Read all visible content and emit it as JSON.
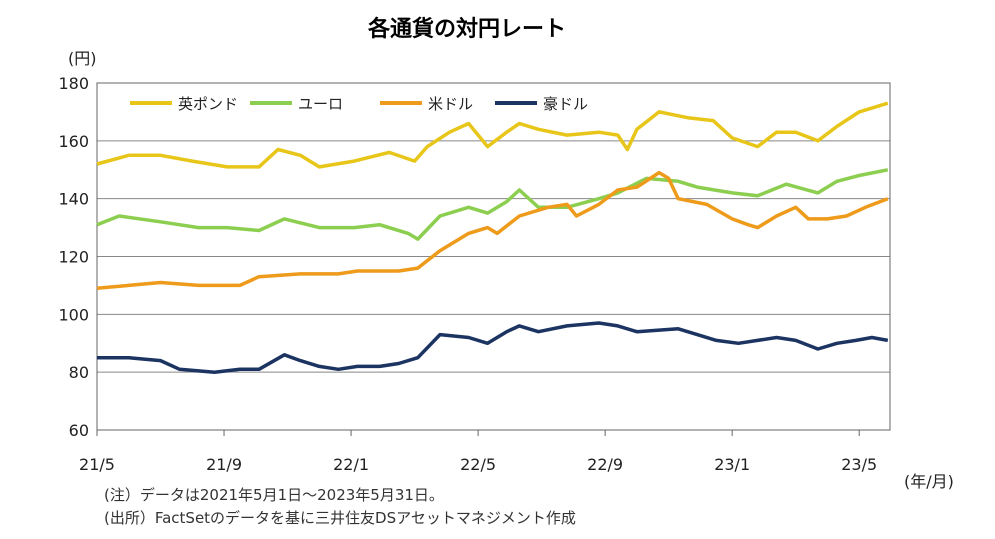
{
  "chart_data": {
    "type": "line",
    "title": "各通貨の対円レート",
    "ylabel": "(円)",
    "xlabel": "(年/月)",
    "ylim": [
      60,
      180
    ],
    "yticks": [
      60,
      80,
      100,
      120,
      140,
      160,
      180
    ],
    "xlim_months_since_2021_05": [
      0,
      24.97
    ],
    "xticks": [
      {
        "label": "21/5",
        "m": 0
      },
      {
        "label": "21/9",
        "m": 4
      },
      {
        "label": "22/1",
        "m": 8
      },
      {
        "label": "22/5",
        "m": 12
      },
      {
        "label": "22/9",
        "m": 16
      },
      {
        "label": "23/1",
        "m": 20
      },
      {
        "label": "23/5",
        "m": 24
      }
    ],
    "grid": true,
    "legend_position": "top-left",
    "series": [
      {
        "name": "英ポンド",
        "color": "#e8c619",
        "points": [
          [
            0,
            152
          ],
          [
            1.0,
            155
          ],
          [
            2.0,
            155
          ],
          [
            3.0,
            153
          ],
          [
            4.1,
            151
          ],
          [
            5.1,
            151
          ],
          [
            5.7,
            157
          ],
          [
            6.4,
            155
          ],
          [
            7.0,
            151
          ],
          [
            8.1,
            153
          ],
          [
            9.2,
            156
          ],
          [
            10.0,
            153
          ],
          [
            10.4,
            158
          ],
          [
            11.1,
            163
          ],
          [
            11.7,
            166
          ],
          [
            12.3,
            158
          ],
          [
            12.9,
            163
          ],
          [
            13.3,
            166
          ],
          [
            13.9,
            164
          ],
          [
            14.8,
            162
          ],
          [
            15.8,
            163
          ],
          [
            16.4,
            162
          ],
          [
            16.7,
            157
          ],
          [
            17.0,
            164
          ],
          [
            17.7,
            170
          ],
          [
            18.6,
            168
          ],
          [
            19.4,
            167
          ],
          [
            20.0,
            161
          ],
          [
            20.8,
            158
          ],
          [
            21.4,
            163
          ],
          [
            22.0,
            163
          ],
          [
            22.7,
            160
          ],
          [
            23.3,
            165
          ],
          [
            24.0,
            170
          ],
          [
            24.9,
            173
          ]
        ]
      },
      {
        "name": "ユーロ",
        "color": "#8cce4f",
        "points": [
          [
            0,
            131
          ],
          [
            0.7,
            134
          ],
          [
            2.0,
            132
          ],
          [
            3.2,
            130
          ],
          [
            4.1,
            130
          ],
          [
            5.1,
            129
          ],
          [
            5.9,
            133
          ],
          [
            7.0,
            130
          ],
          [
            8.1,
            130
          ],
          [
            8.9,
            131
          ],
          [
            9.8,
            128
          ],
          [
            10.1,
            126
          ],
          [
            10.8,
            134
          ],
          [
            11.7,
            137
          ],
          [
            12.3,
            135
          ],
          [
            12.9,
            139
          ],
          [
            13.3,
            143
          ],
          [
            13.9,
            137
          ],
          [
            14.8,
            137
          ],
          [
            15.8,
            140
          ],
          [
            16.4,
            142
          ],
          [
            17.3,
            147
          ],
          [
            18.3,
            146
          ],
          [
            18.9,
            144
          ],
          [
            20.0,
            142
          ],
          [
            20.8,
            141
          ],
          [
            21.7,
            145
          ],
          [
            22.7,
            142
          ],
          [
            23.3,
            146
          ],
          [
            24.0,
            148
          ],
          [
            24.9,
            150
          ]
        ]
      },
      {
        "name": "米ドル",
        "color": "#ee9a1a",
        "points": [
          [
            0,
            109
          ],
          [
            1.0,
            110
          ],
          [
            2.0,
            111
          ],
          [
            3.2,
            110
          ],
          [
            4.5,
            110
          ],
          [
            5.1,
            113
          ],
          [
            6.4,
            114
          ],
          [
            7.6,
            114
          ],
          [
            8.2,
            115
          ],
          [
            9.5,
            115
          ],
          [
            10.1,
            116
          ],
          [
            10.8,
            122
          ],
          [
            11.7,
            128
          ],
          [
            12.3,
            130
          ],
          [
            12.6,
            128
          ],
          [
            13.3,
            134
          ],
          [
            14.2,
            137
          ],
          [
            14.8,
            138
          ],
          [
            15.1,
            134
          ],
          [
            15.8,
            138
          ],
          [
            16.4,
            143
          ],
          [
            17.0,
            144
          ],
          [
            17.7,
            149
          ],
          [
            18.0,
            147
          ],
          [
            18.3,
            140
          ],
          [
            19.2,
            138
          ],
          [
            20.0,
            133
          ],
          [
            20.5,
            131
          ],
          [
            20.8,
            130
          ],
          [
            21.4,
            134
          ],
          [
            22.0,
            137
          ],
          [
            22.4,
            133
          ],
          [
            23.0,
            133
          ],
          [
            23.6,
            134
          ],
          [
            24.2,
            137
          ],
          [
            24.9,
            140
          ]
        ]
      },
      {
        "name": "豪ドル",
        "color": "#1c3461",
        "points": [
          [
            0,
            85
          ],
          [
            1.0,
            85
          ],
          [
            2.0,
            84
          ],
          [
            2.6,
            81
          ],
          [
            3.7,
            80
          ],
          [
            4.5,
            81
          ],
          [
            5.1,
            81
          ],
          [
            5.9,
            86
          ],
          [
            6.4,
            84
          ],
          [
            7.0,
            82
          ],
          [
            7.6,
            81
          ],
          [
            8.2,
            82
          ],
          [
            8.9,
            82
          ],
          [
            9.5,
            83
          ],
          [
            10.1,
            85
          ],
          [
            10.8,
            93
          ],
          [
            11.7,
            92
          ],
          [
            12.3,
            90
          ],
          [
            12.9,
            94
          ],
          [
            13.3,
            96
          ],
          [
            13.9,
            94
          ],
          [
            14.8,
            96
          ],
          [
            15.8,
            97
          ],
          [
            16.4,
            96
          ],
          [
            17.0,
            94
          ],
          [
            18.3,
            95
          ],
          [
            18.9,
            93
          ],
          [
            19.5,
            91
          ],
          [
            20.2,
            90
          ],
          [
            20.8,
            91
          ],
          [
            21.4,
            92
          ],
          [
            22.0,
            91
          ],
          [
            22.7,
            88
          ],
          [
            23.3,
            90
          ],
          [
            23.9,
            91
          ],
          [
            24.4,
            92
          ],
          [
            24.9,
            91
          ]
        ]
      }
    ]
  },
  "notes": [
    "(注）データは2021年5月1日～2023年5月31日。",
    "(出所）FactSetのデータを基に三井住友DSアセットマネジメント作成"
  ]
}
